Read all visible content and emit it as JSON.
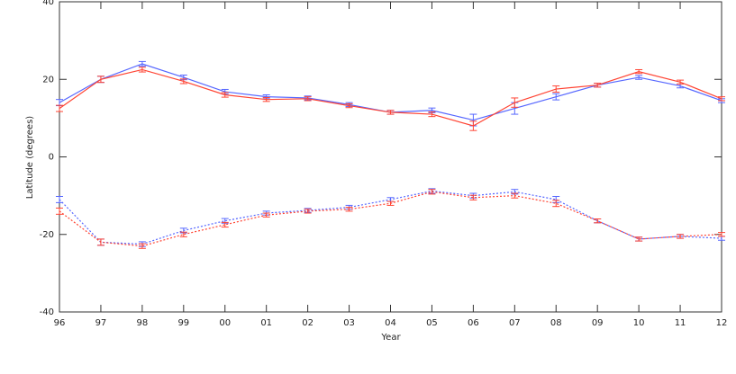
{
  "chart_data": {
    "type": "line",
    "x_label": "Year",
    "y_label": "Latitude (degrees)",
    "categories": [
      "96",
      "97",
      "98",
      "99",
      "00",
      "01",
      "02",
      "03",
      "04",
      "05",
      "06",
      "07",
      "08",
      "09",
      "10",
      "11",
      "12"
    ],
    "ylim": [
      -40,
      40
    ],
    "yticks": [
      -40,
      -20,
      0,
      20,
      40
    ],
    "series": [
      {
        "color": "#5566ff",
        "dashed": false,
        "values": [
          14,
          20,
          24,
          20.5,
          16.8,
          15.5,
          15.2,
          13.5,
          11.5,
          12,
          9.5,
          12.5,
          15.5,
          18.5,
          20.5,
          18.3,
          14.5
        ],
        "errors": [
          0.8,
          0.8,
          0.6,
          0.6,
          0.6,
          0.5,
          0.5,
          0.5,
          0.5,
          0.6,
          1.5,
          1.5,
          0.8,
          0.5,
          0.5,
          0.5,
          0.5
        ]
      },
      {
        "color": "#ff4433",
        "dashed": false,
        "values": [
          12.5,
          20,
          22.5,
          19.5,
          16,
          14.8,
          15,
          13.2,
          11.5,
          11,
          8,
          14,
          17.5,
          18.5,
          22,
          19.3,
          15
        ],
        "errors": [
          0.8,
          0.8,
          0.6,
          0.6,
          0.6,
          0.5,
          0.5,
          0.5,
          0.5,
          0.6,
          1.2,
          1.2,
          0.8,
          0.5,
          0.5,
          0.5,
          0.5
        ]
      },
      {
        "color": "#5566ff",
        "dashed": true,
        "values": [
          -11,
          -22,
          -22.5,
          -19,
          -16.5,
          -14.5,
          -13.8,
          -13,
          -11,
          -8.8,
          -10,
          -9,
          -11,
          -16.5,
          -21.2,
          -20.5,
          -21
        ],
        "errors": [
          0.8,
          0.8,
          0.6,
          0.6,
          0.6,
          0.5,
          0.5,
          0.5,
          0.5,
          0.6,
          0.6,
          0.6,
          0.8,
          0.5,
          0.5,
          0.5,
          0.5
        ]
      },
      {
        "color": "#ff4433",
        "dashed": true,
        "values": [
          -14,
          -22,
          -23,
          -20,
          -17.5,
          -15,
          -14,
          -13.5,
          -12,
          -9,
          -10.5,
          -10,
          -12,
          -16.5,
          -21.2,
          -20.5,
          -20
        ],
        "errors": [
          0.8,
          0.8,
          0.6,
          0.6,
          0.6,
          0.5,
          0.5,
          0.5,
          0.5,
          0.6,
          0.6,
          0.6,
          0.8,
          0.5,
          0.5,
          0.5,
          0.5
        ]
      }
    ]
  }
}
